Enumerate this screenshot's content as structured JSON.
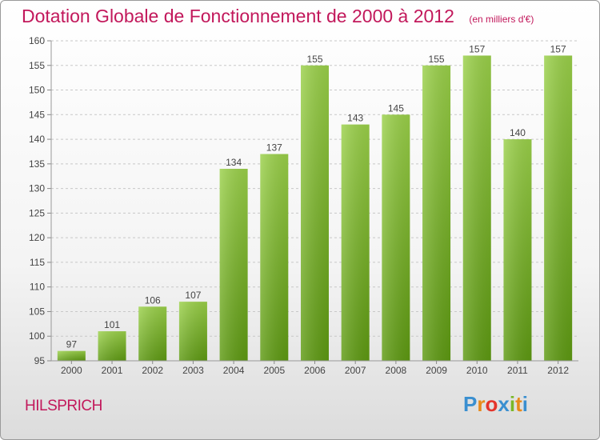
{
  "header": {
    "title": "Dotation Globale de Fonctionnement de 2000 à 2012",
    "unit": "(en milliers d'€)"
  },
  "footer": {
    "commune": "HILSPRICH",
    "logo_letters": [
      "P",
      "r",
      "o",
      "x",
      "i",
      "t",
      "i"
    ],
    "logo_colors": [
      "#3a8fd0",
      "#e88a1a",
      "#e4342b",
      "#3a8fd0",
      "#7ab828",
      "#e88a1a",
      "#3a8fd0"
    ]
  },
  "chart_data": {
    "type": "bar",
    "title": "Dotation Globale de Fonctionnement de 2000 à 2012",
    "subtitle": "(en milliers d'€)",
    "categories": [
      "2000",
      "2001",
      "2002",
      "2003",
      "2004",
      "2005",
      "2006",
      "2007",
      "2008",
      "2009",
      "2010",
      "2011",
      "2012"
    ],
    "values": [
      97,
      101,
      106,
      107,
      134,
      137,
      155,
      143,
      145,
      155,
      157,
      140,
      157
    ],
    "ylim": [
      95,
      160
    ],
    "yticks": [
      95,
      100,
      105,
      110,
      115,
      120,
      125,
      130,
      135,
      140,
      145,
      150,
      155,
      160
    ],
    "grid": true,
    "bar_color_top": "#9bd14a",
    "bar_color_bottom": "#5e9a12",
    "text_color": "#444444",
    "title_color": "#c2185b"
  }
}
